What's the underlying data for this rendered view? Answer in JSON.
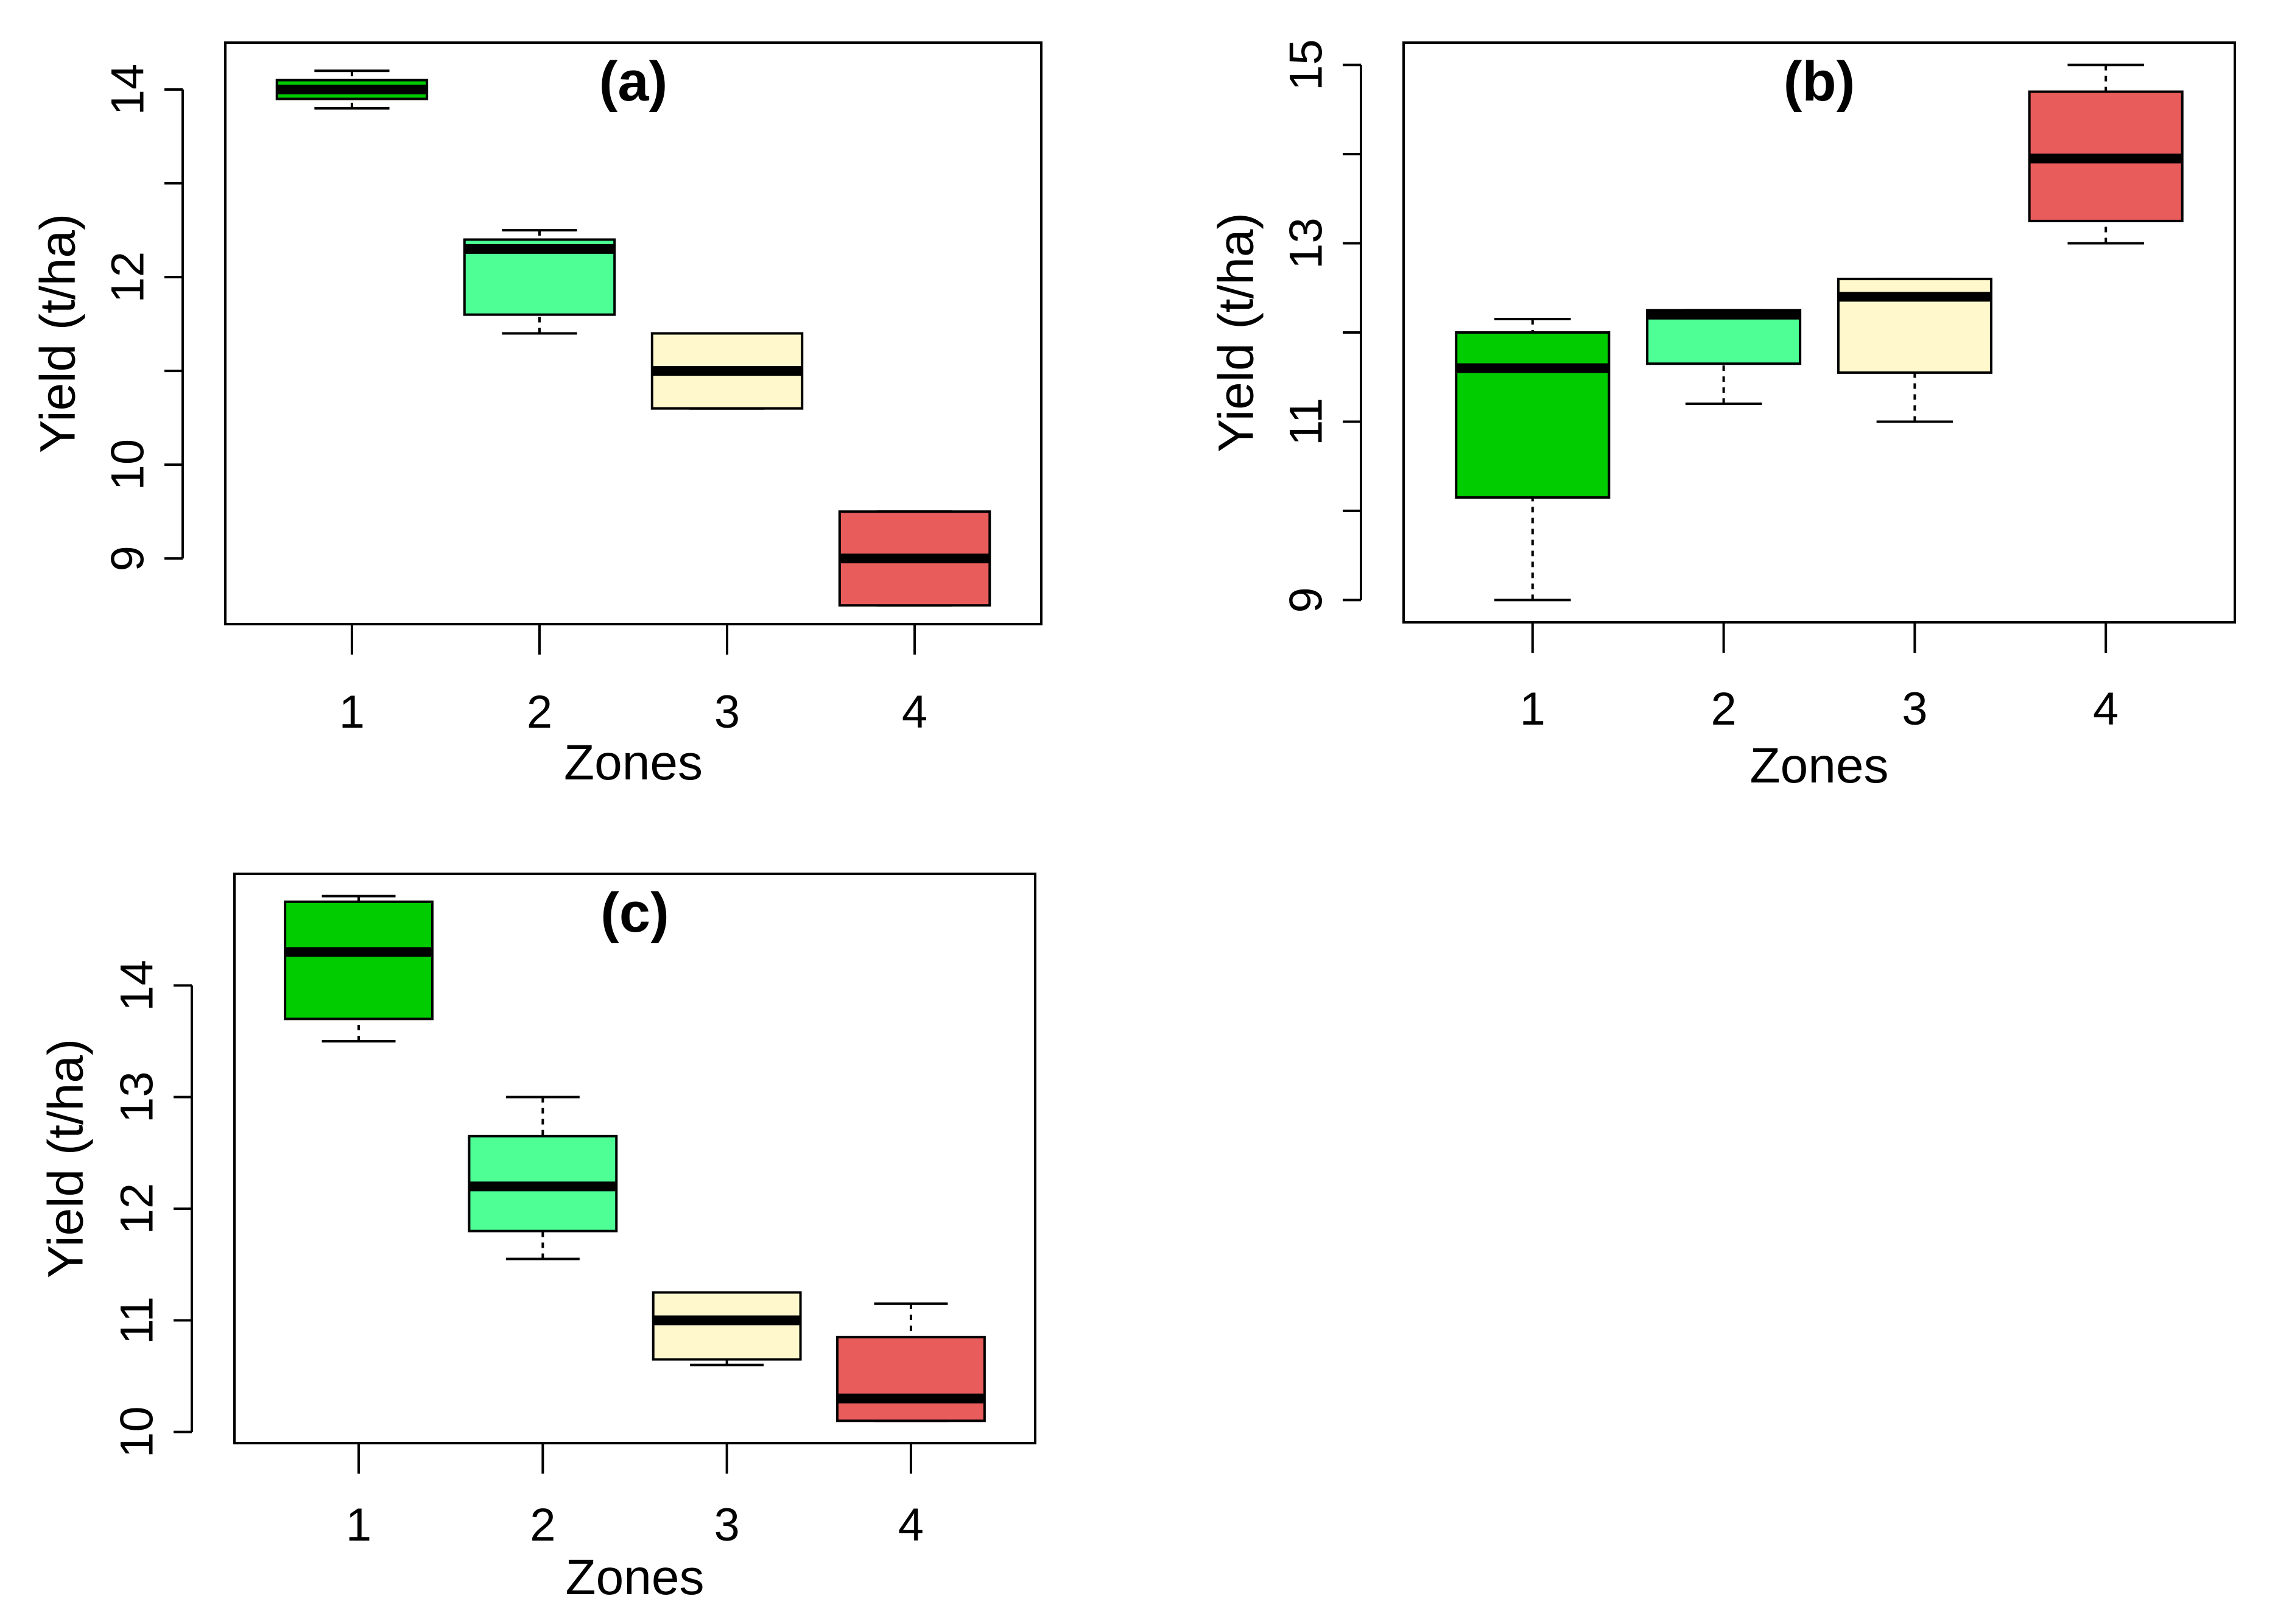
{
  "chart_data": [
    {
      "type": "box",
      "panel_label": "(a)",
      "title": "(a)",
      "xlabel": "Zones",
      "ylabel": "Yield (t/ha)",
      "categories": [
        "1",
        "2",
        "3",
        "4"
      ],
      "colors": [
        "#00cc00",
        "#4dff94",
        "#fff8cc",
        "#e85c5c"
      ],
      "y_ticks": [
        9,
        10,
        11,
        12,
        13,
        14
      ],
      "y_tick_labels": [
        "9",
        "10",
        "",
        "12",
        "",
        "14"
      ],
      "ylim": [
        8.3,
        14.5
      ],
      "boxes": [
        {
          "min": 13.8,
          "q1": 13.9,
          "median": 14.0,
          "q3": 14.1,
          "max": 14.2
        },
        {
          "min": 11.4,
          "q1": 11.6,
          "median": 12.3,
          "q3": 12.4,
          "max": 12.5
        },
        {
          "min": 10.6,
          "q1": 10.6,
          "median": 11.0,
          "q3": 11.4,
          "max": 11.4
        },
        {
          "min": 8.5,
          "q1": 8.5,
          "median": 9.0,
          "q3": 9.5,
          "max": 9.5
        }
      ]
    },
    {
      "type": "box",
      "panel_label": "(b)",
      "title": "(b)",
      "xlabel": "Zones",
      "ylabel": "Yield (t/ha)",
      "categories": [
        "1",
        "2",
        "3",
        "4"
      ],
      "colors": [
        "#00cc00",
        "#4dff94",
        "#fff8cc",
        "#e85c5c"
      ],
      "y_ticks": [
        9,
        10,
        11,
        12,
        13,
        14,
        15
      ],
      "y_tick_labels": [
        "9",
        "",
        "11",
        "",
        "13",
        "",
        "15"
      ],
      "ylim": [
        8.75,
        15.25
      ],
      "boxes": [
        {
          "min": 9.0,
          "q1": 10.15,
          "median": 11.6,
          "q3": 12.0,
          "max": 12.15
        },
        {
          "min": 11.2,
          "q1": 11.65,
          "median": 12.2,
          "q3": 12.25,
          "max": 12.25
        },
        {
          "min": 11.0,
          "q1": 11.55,
          "median": 12.4,
          "q3": 12.6,
          "max": 12.6
        },
        {
          "min": 13.0,
          "q1": 13.25,
          "median": 13.95,
          "q3": 14.7,
          "max": 15.0
        }
      ]
    },
    {
      "type": "box",
      "panel_label": "(c)",
      "title": "(c)",
      "xlabel": "Zones",
      "ylabel": "Yield (t/ha)",
      "categories": [
        "1",
        "2",
        "3",
        "4"
      ],
      "colors": [
        "#00cc00",
        "#4dff94",
        "#fff8cc",
        "#e85c5c"
      ],
      "y_ticks": [
        10,
        11,
        12,
        13,
        14
      ],
      "y_tick_labels": [
        "10",
        "11",
        "12",
        "13",
        "14"
      ],
      "ylim": [
        9.9,
        15.0
      ],
      "boxes": [
        {
          "min": 13.5,
          "q1": 13.7,
          "median": 14.3,
          "q3": 14.75,
          "max": 14.8
        },
        {
          "min": 11.55,
          "q1": 11.8,
          "median": 12.2,
          "q3": 12.65,
          "max": 13.0
        },
        {
          "min": 10.6,
          "q1": 10.65,
          "median": 11.0,
          "q3": 11.25,
          "max": 11.25
        },
        {
          "min": 10.1,
          "q1": 10.1,
          "median": 10.3,
          "q3": 10.85,
          "max": 11.15
        }
      ]
    }
  ]
}
